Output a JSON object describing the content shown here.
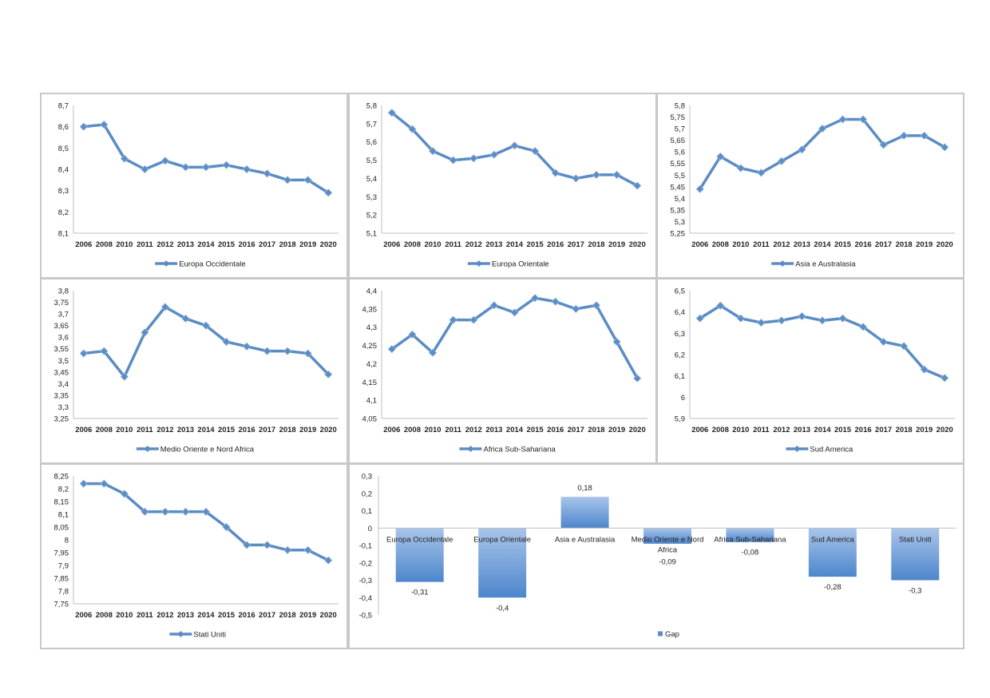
{
  "colors": {
    "series": "#5b8cc4",
    "series_dark": "#4a7ab3",
    "axis": "#bfbfbf",
    "border": "#c8c8c8",
    "bar_top": "#a9c5ea",
    "bar_bottom": "#4d86cc"
  },
  "chart_data": [
    {
      "type": "line",
      "legend": "Europa Occidentale",
      "legend_position": "bottom",
      "categories": [
        "2006",
        "2008",
        "2010",
        "2011",
        "2012",
        "2013",
        "2014",
        "2015",
        "2016",
        "2017",
        "2018",
        "2019",
        "2020"
      ],
      "values": [
        8.6,
        8.61,
        8.45,
        8.4,
        8.44,
        8.41,
        8.41,
        8.42,
        8.4,
        8.38,
        8.35,
        8.35,
        8.29
      ],
      "ylim": [
        8.1,
        8.7
      ],
      "yticks": [
        "8,1",
        "8,2",
        "8,3",
        "8,4",
        "8,5",
        "8,6",
        "8,7"
      ],
      "ytick_values": [
        8.1,
        8.2,
        8.3,
        8.4,
        8.5,
        8.6,
        8.7
      ]
    },
    {
      "type": "line",
      "legend": "Europa Orientale",
      "legend_position": "bottom",
      "categories": [
        "2006",
        "2008",
        "2010",
        "2011",
        "2012",
        "2013",
        "2014",
        "2015",
        "2016",
        "2017",
        "2018",
        "2019",
        "2020"
      ],
      "values": [
        5.76,
        5.67,
        5.55,
        5.5,
        5.51,
        5.53,
        5.58,
        5.55,
        5.43,
        5.4,
        5.42,
        5.42,
        5.36
      ],
      "ylim": [
        5.1,
        5.8
      ],
      "yticks": [
        "5,1",
        "5,2",
        "5,3",
        "5,4",
        "5,5",
        "5,6",
        "5,7",
        "5,8"
      ],
      "ytick_values": [
        5.1,
        5.2,
        5.3,
        5.4,
        5.5,
        5.6,
        5.7,
        5.8
      ]
    },
    {
      "type": "line",
      "legend": "Asia e Australasia",
      "legend_position": "bottom",
      "categories": [
        "2006",
        "2008",
        "2010",
        "2011",
        "2012",
        "2013",
        "2014",
        "2015",
        "2016",
        "2017",
        "2018",
        "2019",
        "2020"
      ],
      "values": [
        5.44,
        5.58,
        5.53,
        5.51,
        5.56,
        5.61,
        5.7,
        5.74,
        5.74,
        5.63,
        5.67,
        5.67,
        5.62
      ],
      "ylim": [
        5.25,
        5.8
      ],
      "yticks": [
        "5,25",
        "5,3",
        "5,35",
        "5,4",
        "5,45",
        "5,5",
        "5,55",
        "5,6",
        "5,65",
        "5,7",
        "5,75",
        "5,8"
      ],
      "ytick_values": [
        5.25,
        5.3,
        5.35,
        5.4,
        5.45,
        5.5,
        5.55,
        5.6,
        5.65,
        5.7,
        5.75,
        5.8
      ]
    },
    {
      "type": "line",
      "legend": "Medio Oriente e Nord Africa",
      "legend_position": "bottom",
      "categories": [
        "2006",
        "2008",
        "2010",
        "2011",
        "2012",
        "2013",
        "2014",
        "2015",
        "2016",
        "2017",
        "2018",
        "2019",
        "2020"
      ],
      "values": [
        3.53,
        3.54,
        3.43,
        3.62,
        3.73,
        3.68,
        3.65,
        3.58,
        3.56,
        3.54,
        3.54,
        3.53,
        3.44
      ],
      "ylim": [
        3.25,
        3.8
      ],
      "yticks": [
        "3,25",
        "3,3",
        "3,35",
        "3,4",
        "3,45",
        "3,5",
        "3,55",
        "3,6",
        "3,65",
        "3,7",
        "3,75",
        "3,8"
      ],
      "ytick_values": [
        3.25,
        3.3,
        3.35,
        3.4,
        3.45,
        3.5,
        3.55,
        3.6,
        3.65,
        3.7,
        3.75,
        3.8
      ]
    },
    {
      "type": "line",
      "legend": "Africa Sub-Sahariana",
      "legend_position": "bottom",
      "categories": [
        "2006",
        "2008",
        "2010",
        "2011",
        "2012",
        "2013",
        "2014",
        "2015",
        "2016",
        "2017",
        "2018",
        "2019",
        "2020"
      ],
      "values": [
        4.24,
        4.28,
        4.23,
        4.32,
        4.32,
        4.36,
        4.34,
        4.38,
        4.37,
        4.35,
        4.36,
        4.26,
        4.16
      ],
      "ylim": [
        4.05,
        4.4
      ],
      "yticks": [
        "4,05",
        "4,1",
        "4,15",
        "4,2",
        "4,25",
        "4,3",
        "4,35",
        "4,4"
      ],
      "ytick_values": [
        4.05,
        4.1,
        4.15,
        4.2,
        4.25,
        4.3,
        4.35,
        4.4
      ]
    },
    {
      "type": "line",
      "legend": "Sud America",
      "legend_position": "bottom",
      "categories": [
        "2006",
        "2008",
        "2010",
        "2011",
        "2012",
        "2013",
        "2014",
        "2015",
        "2016",
        "2017",
        "2018",
        "2019",
        "2020"
      ],
      "values": [
        6.37,
        6.43,
        6.37,
        6.35,
        6.36,
        6.38,
        6.36,
        6.37,
        6.33,
        6.26,
        6.24,
        6.13,
        6.09
      ],
      "ylim": [
        5.9,
        6.5
      ],
      "yticks": [
        "5,9",
        "6",
        "6,1",
        "6,2",
        "6,3",
        "6,4",
        "6,5"
      ],
      "ytick_values": [
        5.9,
        6.0,
        6.1,
        6.2,
        6.3,
        6.4,
        6.5
      ]
    },
    {
      "type": "line",
      "legend": "Stati Uniti",
      "legend_position": "bottom",
      "categories": [
        "2006",
        "2008",
        "2010",
        "2011",
        "2012",
        "2013",
        "2014",
        "2015",
        "2016",
        "2017",
        "2018",
        "2019",
        "2020"
      ],
      "values": [
        8.22,
        8.22,
        8.18,
        8.11,
        8.11,
        8.11,
        8.11,
        8.05,
        7.98,
        7.98,
        7.96,
        7.96,
        7.92
      ],
      "ylim": [
        7.75,
        8.25
      ],
      "yticks": [
        "7,75",
        "7,8",
        "7,85",
        "7,9",
        "7,95",
        "8",
        "8,05",
        "8,1",
        "8,15",
        "8,2",
        "8,25"
      ],
      "ytick_values": [
        7.75,
        7.8,
        7.85,
        7.9,
        7.95,
        8.0,
        8.05,
        8.1,
        8.15,
        8.2,
        8.25
      ]
    },
    {
      "type": "bar",
      "legend": "Gap",
      "legend_position": "bottom",
      "categories": [
        "Europa Occidentale",
        "Europa Orientale",
        "Asia e Australasia",
        "Medio Oriente e Nord Africa",
        "Africa Sub-Sahariana",
        "Sud America",
        "Stati Uniti"
      ],
      "values": [
        -0.31,
        -0.4,
        0.18,
        -0.09,
        -0.08,
        -0.28,
        -0.3
      ],
      "data_labels": [
        "-0,31",
        "-0,4",
        "0,18",
        "-0,09",
        "-0,08",
        "-0,28",
        "-0,3"
      ],
      "ylim": [
        -0.5,
        0.3
      ],
      "yticks": [
        "-0,5",
        "-0,4",
        "-0,3",
        "-0,2",
        "-0,1",
        "0",
        "0,1",
        "0,2",
        "0,3"
      ],
      "ytick_values": [
        -0.5,
        -0.4,
        -0.3,
        -0.2,
        -0.1,
        0,
        0.1,
        0.2,
        0.3
      ]
    }
  ]
}
